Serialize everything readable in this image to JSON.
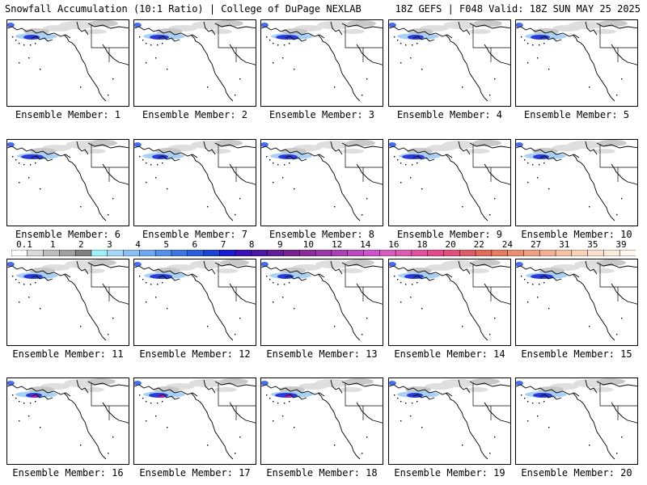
{
  "header": {
    "left": "Snowfall Accumulation (10:1 Ratio) | College of DuPage NEXLAB",
    "right": "18Z GEFS | F048 Valid: 18Z SUN MAY 25 2025"
  },
  "panels": [
    {
      "label": "Ensemble Member: 1"
    },
    {
      "label": "Ensemble Member: 2"
    },
    {
      "label": "Ensemble Member: 3"
    },
    {
      "label": "Ensemble Member: 4"
    },
    {
      "label": "Ensemble Member: 5"
    },
    {
      "label": "Ensemble Member: 6"
    },
    {
      "label": "Ensemble Member: 7"
    },
    {
      "label": "Ensemble Member: 8"
    },
    {
      "label": "Ensemble Member: 9"
    },
    {
      "label": "Ensemble Member: 10"
    },
    {
      "label": "Ensemble Member: 11"
    },
    {
      "label": "Ensemble Member: 12"
    },
    {
      "label": "Ensemble Member: 13"
    },
    {
      "label": "Ensemble Member: 14"
    },
    {
      "label": "Ensemble Member: 15"
    },
    {
      "label": "Ensemble Member: 16"
    },
    {
      "label": "Ensemble Member: 17"
    },
    {
      "label": "Ensemble Member: 18"
    },
    {
      "label": "Ensemble Member: 19"
    },
    {
      "label": "Ensemble Member: 20"
    }
  ],
  "colorbar": {
    "labels": [
      "0.1",
      "1",
      "2",
      "3",
      "4",
      "5",
      "6",
      "7",
      "8",
      "9",
      "10",
      "12",
      "14",
      "16",
      "18",
      "20",
      "22",
      "24",
      "27",
      "31",
      "35",
      "39"
    ],
    "colors": [
      "#ffffff",
      "#d9d9d9",
      "#bdbdbd",
      "#a0a0a0",
      "#808080",
      "#9ff0f8",
      "#a8d8f8",
      "#8cc0f4",
      "#6fa8f0",
      "#5290ec",
      "#3a74e6",
      "#2a5cde",
      "#1a44d6",
      "#1a1ad0",
      "#3a10b8",
      "#4e16a6",
      "#621c9a",
      "#782294",
      "#8c2a9e",
      "#9c34aa",
      "#ac3eb6",
      "#bc48c2",
      "#cc52ce",
      "#d65cc0",
      "#de5ab0",
      "#e0529e",
      "#e24a8c",
      "#e0507a",
      "#e05a68",
      "#e46a5c",
      "#e87a60",
      "#ec8c70",
      "#f09e80",
      "#f4b090",
      "#f6c2a4",
      "#f8d2b8",
      "#fae0cc",
      "#fcecdc",
      "#fff6ec"
    ]
  }
}
